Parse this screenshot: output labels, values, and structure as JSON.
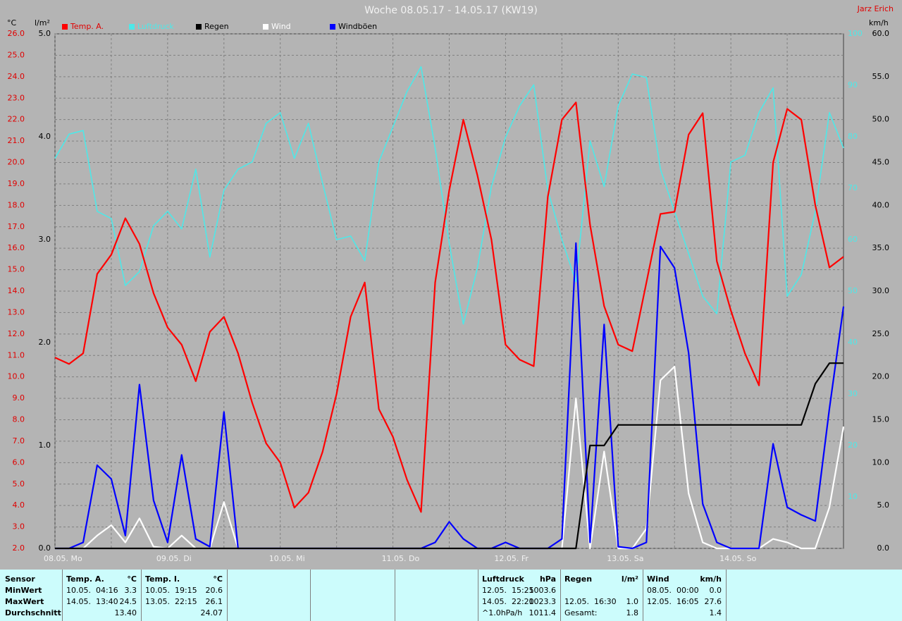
{
  "chart_data": {
    "type": "line",
    "title": "Woche 08.05.17 - 14.05.17 (KW19)",
    "credit": "Jarz Erich",
    "units": {
      "y": "°C",
      "y2": "l/m²",
      "y4": "km/h"
    },
    "xlim": [
      0,
      168
    ],
    "xticks": [
      {
        "value": 0,
        "label": "08.05. Mo"
      },
      {
        "value": 24,
        "label": "09.05. Di"
      },
      {
        "value": 48,
        "label": "10.05. Mi"
      },
      {
        "value": 72,
        "label": "11.05. Do"
      },
      {
        "value": 96,
        "label": "12.05. Fr"
      },
      {
        "value": 120,
        "label": "13.05. Sa"
      },
      {
        "value": 144,
        "label": "14.05. So"
      }
    ],
    "ylim": [
      2,
      26
    ],
    "yticks": [
      {
        "value": 2,
        "label": "2.0"
      },
      {
        "value": 3,
        "label": "3.0"
      },
      {
        "value": 4,
        "label": "4.0"
      },
      {
        "value": 5,
        "label": "5.0"
      },
      {
        "value": 6,
        "label": "6.0"
      },
      {
        "value": 7,
        "label": "7.0"
      },
      {
        "value": 8,
        "label": "8.0"
      },
      {
        "value": 9,
        "label": "9.0"
      },
      {
        "value": 10,
        "label": "10.0"
      },
      {
        "value": 11,
        "label": "11.0"
      },
      {
        "value": 12,
        "label": "12.0"
      },
      {
        "value": 13,
        "label": "13.0"
      },
      {
        "value": 14,
        "label": "14.0"
      },
      {
        "value": 15,
        "label": "15.0"
      },
      {
        "value": 16,
        "label": "16.0"
      },
      {
        "value": 17,
        "label": "17.0"
      },
      {
        "value": 18,
        "label": "18.0"
      },
      {
        "value": 19,
        "label": "19.0"
      },
      {
        "value": 20,
        "label": "20.0"
      },
      {
        "value": 21,
        "label": "21.0"
      },
      {
        "value": 22,
        "label": "22.0"
      },
      {
        "value": 23,
        "label": "23.0"
      },
      {
        "value": 24,
        "label": "24.0"
      },
      {
        "value": 25,
        "label": "25.0"
      },
      {
        "value": 26,
        "label": "26.0"
      }
    ],
    "y2lim": [
      0,
      5
    ],
    "y2ticks": [
      {
        "value": 0,
        "label": "0.0"
      },
      {
        "value": 1,
        "label": "1.0"
      },
      {
        "value": 2,
        "label": "2.0"
      },
      {
        "value": 3,
        "label": "3.0"
      },
      {
        "value": 4,
        "label": "4.0"
      },
      {
        "value": 5,
        "label": "5.0"
      }
    ],
    "y3lim": [
      0,
      100
    ],
    "y3ticks": [
      10,
      20,
      30,
      40,
      50,
      60,
      70,
      80,
      90,
      100
    ],
    "y4lim": [
      0,
      60
    ],
    "y4ticks": [
      {
        "value": 0,
        "label": "0.0"
      },
      {
        "value": 5,
        "label": "5.0"
      },
      {
        "value": 10,
        "label": "10.0"
      },
      {
        "value": 15,
        "label": "15.0"
      },
      {
        "value": 20,
        "label": "20.0"
      },
      {
        "value": 25,
        "label": "25.0"
      },
      {
        "value": 30,
        "label": "30.0"
      },
      {
        "value": 35,
        "label": "35.0"
      },
      {
        "value": 40,
        "label": "40.0"
      },
      {
        "value": 45,
        "label": "45.0"
      },
      {
        "value": 50,
        "label": "50.0"
      },
      {
        "value": 55,
        "label": "55.0"
      },
      {
        "value": 60,
        "label": "60.0"
      }
    ],
    "grid": true,
    "x": [
      0,
      3,
      6,
      9,
      12,
      15,
      18,
      21,
      24,
      27,
      30,
      33,
      36,
      39,
      42,
      45,
      48,
      51,
      54,
      57,
      60,
      63,
      66,
      69,
      72,
      75,
      78,
      81,
      84,
      87,
      90,
      93,
      96,
      99,
      102,
      105,
      108,
      111,
      114,
      117,
      120,
      123,
      126,
      129,
      132,
      135,
      138,
      141,
      144,
      147,
      150,
      153,
      156,
      159,
      162,
      165,
      168
    ],
    "series": [
      {
        "name": "Temp. A.",
        "color": "#ff0000",
        "axis": "y",
        "values": [
          10.9,
          10.6,
          11.1,
          14.8,
          15.7,
          17.4,
          16.2,
          13.9,
          12.3,
          11.5,
          9.8,
          12.1,
          12.8,
          11.1,
          8.8,
          6.9,
          6.0,
          3.9,
          4.6,
          6.5,
          9.2,
          12.8,
          14.4,
          8.5,
          7.2,
          5.2,
          3.7,
          14.4,
          18.7,
          22.0,
          19.4,
          16.4,
          11.5,
          10.8,
          10.5,
          18.4,
          22.0,
          22.8,
          17.1,
          13.3,
          11.5,
          11.2,
          14.4,
          17.6,
          17.7,
          21.3,
          22.3,
          15.4,
          13.1,
          11.1,
          9.6,
          20.0,
          22.5,
          22.0,
          18.0,
          15.1,
          15.6
        ]
      },
      {
        "name": "Luftdruck",
        "color": "#4ee8e8",
        "axis": "y3",
        "values": [
          75.8,
          80.5,
          81.2,
          65.5,
          64.1,
          51.1,
          53.8,
          62.7,
          65.5,
          62.1,
          73.7,
          56.6,
          69.6,
          73.7,
          75.1,
          82.6,
          84.7,
          75.8,
          82.6,
          71.0,
          60.0,
          60.7,
          55.9,
          75.1,
          81.9,
          88.8,
          93.6,
          77.8,
          59.3,
          43.6,
          54.5,
          70.3,
          79.9,
          86.0,
          90.1,
          69.6,
          60.0,
          51.8,
          79.2,
          70.3,
          86.0,
          92.2,
          91.5,
          73.7,
          65.5,
          57.3,
          49.0,
          45.6,
          75.1,
          76.4,
          84.7,
          89.5,
          49.0,
          53.2,
          65.5,
          84.7,
          77.8
        ]
      },
      {
        "name": "Regen",
        "color": "#000000",
        "axis": "y2",
        "values": [
          0,
          0,
          0,
          0,
          0,
          0,
          0,
          0,
          0,
          0,
          0,
          0,
          0,
          0,
          0,
          0,
          0,
          0,
          0,
          0,
          0,
          0,
          0,
          0,
          0,
          0,
          0,
          0,
          0,
          0,
          0,
          0,
          0,
          0,
          0,
          0,
          0,
          0,
          1.0,
          1.0,
          1.2,
          1.2,
          1.2,
          1.2,
          1.2,
          1.2,
          1.2,
          1.2,
          1.2,
          1.2,
          1.2,
          1.2,
          1.2,
          1.2,
          1.6,
          1.8,
          1.8
        ]
      },
      {
        "name": "Wind",
        "color": "#ffffff",
        "axis": "y4",
        "values": [
          0,
          0,
          0,
          1.5,
          2.7,
          0.7,
          3.5,
          0.2,
          0,
          1.5,
          0,
          0,
          5.4,
          0,
          0,
          0,
          0,
          0,
          0,
          0,
          0,
          0,
          0,
          0,
          0,
          0,
          0,
          0,
          0,
          0,
          0,
          0,
          0,
          0,
          0,
          0,
          0,
          17.5,
          0,
          11.3,
          0,
          0,
          2.3,
          19.6,
          21.2,
          6.4,
          0.7,
          0,
          0,
          0,
          0,
          1.1,
          0.7,
          0,
          0,
          4.8,
          14.2
        ]
      },
      {
        "name": "Windböen",
        "color": "#0000ff",
        "axis": "y4",
        "values": [
          0,
          0,
          0.7,
          9.7,
          8.1,
          1.5,
          19.1,
          5.6,
          0.7,
          10.9,
          1.1,
          0.2,
          15.9,
          0,
          0,
          0,
          0,
          0,
          0,
          0,
          0,
          0,
          0,
          0,
          0,
          0,
          0,
          0.7,
          3.1,
          1.1,
          0,
          0,
          0.7,
          0,
          0,
          0,
          1.1,
          35.6,
          0.7,
          26.1,
          0.2,
          0,
          0.7,
          35.2,
          32.7,
          22.8,
          5.2,
          0.7,
          0,
          0,
          0,
          12.2,
          4.8,
          3.9,
          3.2,
          16.3,
          28.2
        ]
      }
    ]
  },
  "stats": {
    "labels": {
      "title": "Sensor",
      "rows": [
        "MinWert",
        "MaxWert",
        "Durchschnitt"
      ]
    },
    "panels": [
      {
        "title": "Temp. A.",
        "unit": "°C",
        "rows": [
          {
            "time": "10.05.  04:16",
            "value": "3.3"
          },
          {
            "time": "14.05.  13:40",
            "value": "24.5"
          },
          {
            "value": "13.40"
          }
        ]
      },
      {
        "title": "Temp. I.",
        "unit": "°C",
        "rows": [
          {
            "time": "10.05.  19:15",
            "value": "20.6"
          },
          {
            "time": "13.05.  22:15",
            "value": "26.1"
          },
          {
            "value": "24.07"
          }
        ]
      },
      {
        "title": "Luftdruck",
        "unit": "hPa",
        "rows": [
          {
            "time": "12.05.  15:25",
            "value": "1003.6"
          },
          {
            "time": "14.05.  22:20",
            "value": "1023.3"
          },
          {
            "time": "^1.0hPa/h",
            "value": "1011.4"
          }
        ]
      },
      {
        "title": "Regen",
        "unit": "l/m²",
        "rows": [
          null,
          {
            "time": "12.05.  16:30",
            "value": "1.0"
          },
          {
            "time": "Gesamt:",
            "value": "1.8"
          }
        ]
      },
      {
        "title": "Wind",
        "unit": "km/h",
        "rows": [
          {
            "time": "08.05.  00:00",
            "value": "0.0"
          },
          {
            "time": "12.05.  16:05",
            "value": "27.6"
          },
          {
            "value": "1.4"
          }
        ]
      }
    ]
  }
}
